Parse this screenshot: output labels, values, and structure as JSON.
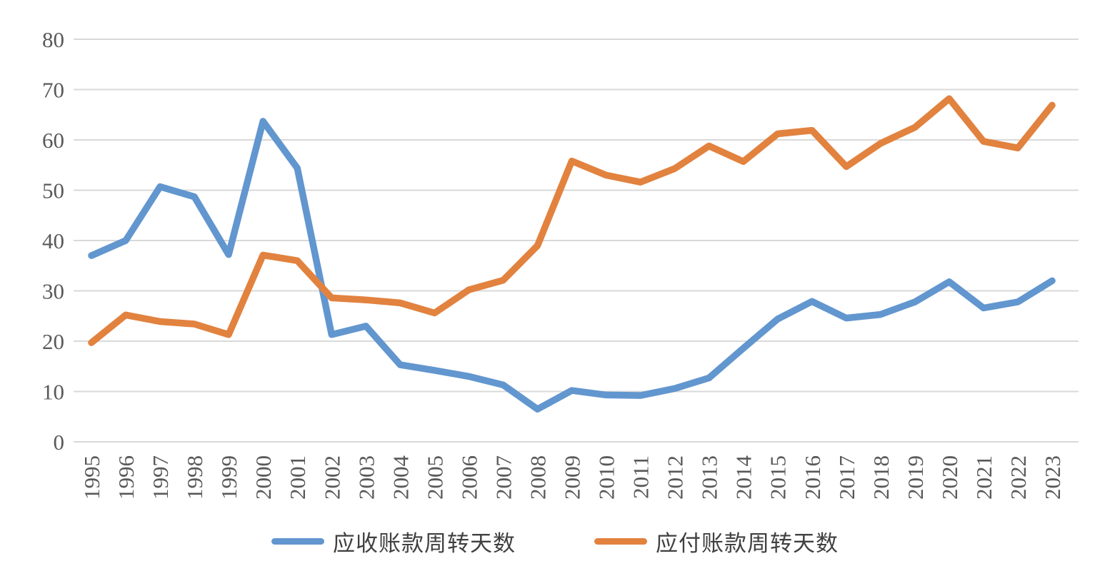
{
  "chart_data": {
    "type": "line",
    "title": "",
    "xlabel": "",
    "ylabel": "",
    "grid": true,
    "legend_position": "bottom",
    "x": [
      "1995",
      "1996",
      "1997",
      "1998",
      "1999",
      "2000",
      "2001",
      "2002",
      "2003",
      "2004",
      "2005",
      "2006",
      "2007",
      "2008",
      "2009",
      "2010",
      "2011",
      "2012",
      "2013",
      "2014",
      "2015",
      "2016",
      "2017",
      "2018",
      "2019",
      "2020",
      "2021",
      "2022",
      "2023"
    ],
    "y_axis": {
      "min": 0,
      "max": 80,
      "step": 10,
      "tick_labels": [
        "0",
        "10",
        "20",
        "30",
        "40",
        "50",
        "60",
        "70",
        "80"
      ]
    },
    "series": [
      {
        "name": "应收账款周转天数",
        "color": "#6296CF",
        "values": [
          37,
          40,
          50.7,
          48.7,
          37.2,
          63.7,
          54.4,
          21.3,
          23,
          15.3,
          14.2,
          13,
          11.3,
          6.5,
          10.2,
          9.3,
          9.2,
          10.6,
          12.7,
          18.6,
          24.4,
          27.9,
          24.6,
          25.3,
          27.8,
          31.8,
          26.6,
          27.8,
          32
        ]
      },
      {
        "name": "应付账款周转天数",
        "color": "#E2823F",
        "values": [
          19.7,
          25.2,
          23.9,
          23.4,
          21.3,
          37.1,
          36,
          28.6,
          28.2,
          27.6,
          25.6,
          30.2,
          32.1,
          39,
          55.8,
          53,
          51.6,
          54.3,
          58.8,
          55.7,
          61.2,
          61.9,
          54.7,
          59.3,
          62.5,
          68.2,
          59.7,
          58.4,
          66.9
        ]
      }
    ]
  },
  "colors": {
    "gridline": "#D9D9D9",
    "axis_label": "#595959",
    "legend_text": "#404040",
    "background": "#FFFFFF"
  }
}
